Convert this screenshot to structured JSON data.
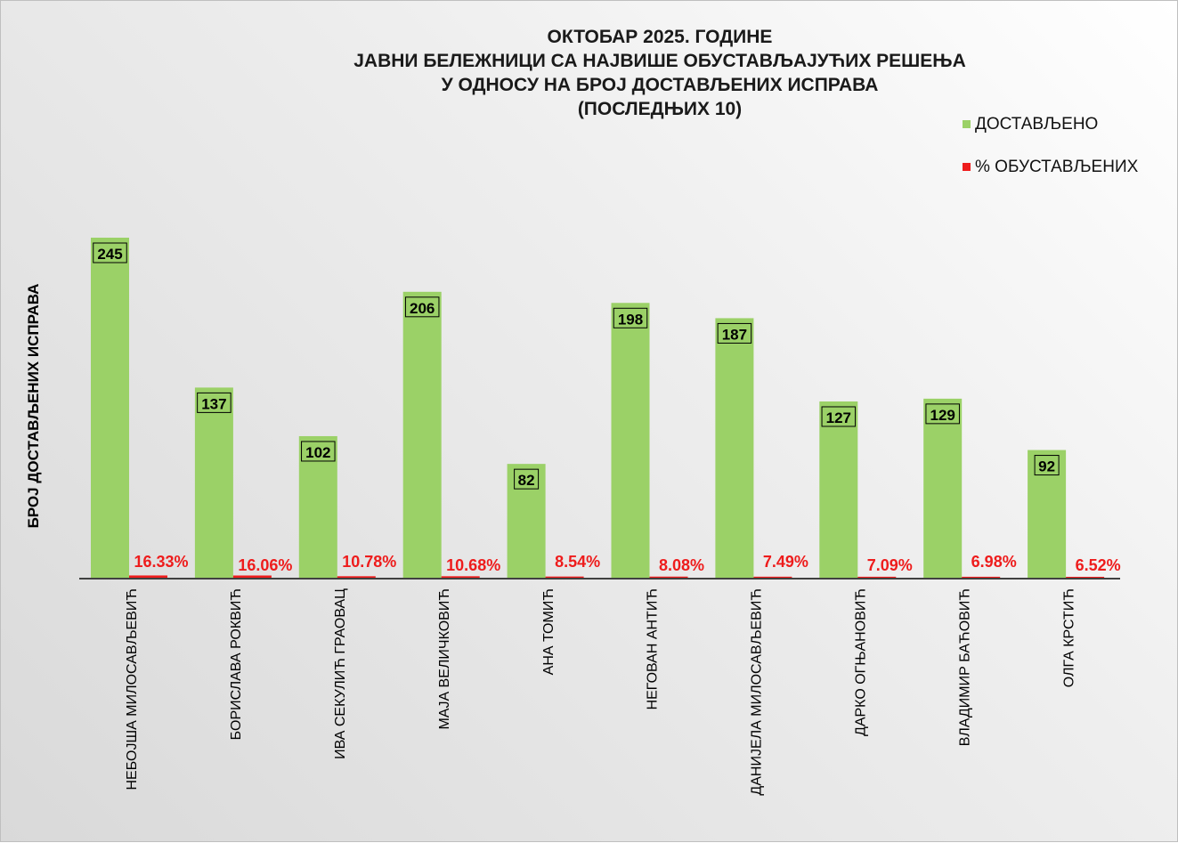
{
  "chart_data": {
    "type": "bar",
    "title": [
      "ОКТОБАР 2025. ГОДИНЕ",
      "ЈАВНИ БЕЛЕЖНИЦИ СА НАЈВИШЕ ОБУСТАВЉАЈУЋИХ РЕШЕЊА",
      "У ОДНОСУ НА БРОЈ ДОСТАВЉЕНИХ ИСПРАВА",
      "(ПОСЛЕДЊИХ 10)"
    ],
    "ylabel": "БРОЈ ДОСТАВЉЕНИХ ИСПРАВА",
    "xlabel": "",
    "legend_position": "top-right",
    "grid": false,
    "ylim": [
      0,
      245
    ],
    "categories": [
      "НЕБОЈША МИЛОСАВЉЕВИЋ",
      "БОРИСЛАВА РОКВИЋ",
      "ИВА СЕКУЛИЋ ГРАОВАЦ",
      "МАЈА ВЕЛИЧКОВИЋ",
      "АНА ТОМИЋ",
      "НЕГОВАН АНТИЋ",
      "ДАНИЈЕЛА МИЛОСАВЉЕВИЋ",
      "ДАРКО ОГЊАНОВИЋ",
      "ВЛАДИМИР БАЋОВИЋ",
      "ОЛГА КРСТИЋ"
    ],
    "series": [
      {
        "name": "ДОСТАВЉЕНО",
        "color": "#9bd167",
        "values": [
          245,
          137,
          102,
          206,
          82,
          198,
          187,
          127,
          129,
          92
        ]
      },
      {
        "name": "% ОБУСТАВЉЕНИХ",
        "color": "#ee1c1c",
        "values": [
          16.33,
          16.06,
          10.78,
          10.68,
          8.54,
          8.08,
          7.49,
          7.09,
          6.98,
          6.52
        ],
        "labels": [
          "16.33%",
          "16.06%",
          "10.78%",
          "10.68%",
          "8.54%",
          "8.08%",
          "7.49%",
          "7.09%",
          "6.98%",
          "6.52%"
        ]
      }
    ]
  }
}
